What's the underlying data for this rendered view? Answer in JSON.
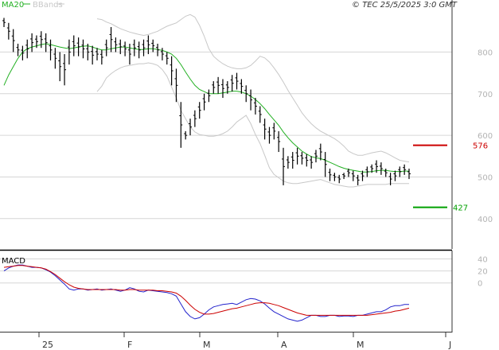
{
  "copyright": "© TEC 25/5/2025 3:0 GMT",
  "legend": {
    "ma_label": "MA20",
    "bb_label": "BBands"
  },
  "macd_label": "MACD",
  "colors": {
    "price": "#000000",
    "ma": "#22b022",
    "bb": "#c8c8c8",
    "grid": "#d6d6d6",
    "resistance": "#cc0000",
    "support": "#00a000",
    "macd": "#2222cc",
    "signal": "#cc0000"
  },
  "chart_data": {
    "type": "line",
    "price_panel": {
      "y_ticks": [
        400,
        500,
        600,
        700,
        800
      ],
      "ylim": [
        327,
        925
      ],
      "x_ticks": [
        "25",
        "F",
        "M",
        "A",
        "M",
        "J"
      ],
      "resistance": {
        "value": 576,
        "label": "576"
      },
      "support": {
        "value": 427,
        "label": "427"
      },
      "bars": [
        [
          882,
          860
        ],
        [
          870,
          830
        ],
        [
          855,
          800
        ],
        [
          820,
          790
        ],
        [
          815,
          780
        ],
        [
          830,
          785
        ],
        [
          845,
          800
        ],
        [
          840,
          810
        ],
        [
          850,
          810
        ],
        [
          845,
          800
        ],
        [
          830,
          780
        ],
        [
          810,
          760
        ],
        [
          800,
          730
        ],
        [
          795,
          720
        ],
        [
          830,
          770
        ],
        [
          840,
          790
        ],
        [
          835,
          790
        ],
        [
          830,
          785
        ],
        [
          820,
          780
        ],
        [
          815,
          770
        ],
        [
          810,
          780
        ],
        [
          805,
          770
        ],
        [
          830,
          790
        ],
        [
          860,
          800
        ],
        [
          835,
          800
        ],
        [
          830,
          795
        ],
        [
          825,
          790
        ],
        [
          820,
          770
        ],
        [
          830,
          790
        ],
        [
          825,
          785
        ],
        [
          830,
          790
        ],
        [
          840,
          795
        ],
        [
          830,
          800
        ],
        [
          820,
          790
        ],
        [
          810,
          780
        ],
        [
          800,
          770
        ],
        [
          790,
          720
        ],
        [
          760,
          680
        ],
        [
          680,
          570
        ],
        [
          610,
          590
        ],
        [
          640,
          600
        ],
        [
          660,
          620
        ],
        [
          680,
          640
        ],
        [
          700,
          660
        ],
        [
          710,
          680
        ],
        [
          730,
          700
        ],
        [
          740,
          700
        ],
        [
          735,
          690
        ],
        [
          730,
          700
        ],
        [
          745,
          705
        ],
        [
          750,
          710
        ],
        [
          735,
          700
        ],
        [
          720,
          680
        ],
        [
          710,
          660
        ],
        [
          690,
          650
        ],
        [
          670,
          630
        ],
        [
          640,
          590
        ],
        [
          620,
          580
        ],
        [
          630,
          590
        ],
        [
          610,
          560
        ],
        [
          570,
          480
        ],
        [
          550,
          520
        ],
        [
          560,
          520
        ],
        [
          570,
          530
        ],
        [
          560,
          530
        ],
        [
          555,
          525
        ],
        [
          550,
          520
        ],
        [
          565,
          535
        ],
        [
          580,
          540
        ],
        [
          560,
          500
        ],
        [
          520,
          490
        ],
        [
          510,
          490
        ],
        [
          505,
          485
        ],
        [
          510,
          495
        ],
        [
          520,
          500
        ],
        [
          515,
          490
        ],
        [
          505,
          480
        ],
        [
          515,
          490
        ],
        [
          525,
          500
        ],
        [
          530,
          510
        ],
        [
          540,
          510
        ],
        [
          535,
          505
        ],
        [
          520,
          500
        ],
        [
          510,
          480
        ],
        [
          515,
          490
        ],
        [
          525,
          500
        ],
        [
          530,
          505
        ],
        [
          520,
          495
        ]
      ],
      "ma20": [
        720,
        745,
        765,
        785,
        800,
        808,
        812,
        815,
        818,
        820,
        818,
        815,
        812,
        810,
        808,
        810,
        812,
        814,
        815,
        812,
        808,
        805,
        805,
        808,
        810,
        812,
        812,
        810,
        808,
        806,
        806,
        808,
        808,
        806,
        804,
        800,
        795,
        785,
        770,
        752,
        735,
        720,
        710,
        705,
        700,
        700,
        700,
        702,
        704,
        706,
        706,
        704,
        700,
        694,
        686,
        676,
        664,
        650,
        637,
        624,
        608,
        594,
        582,
        572,
        562,
        555,
        549,
        546,
        544,
        540,
        535,
        530,
        525,
        521,
        518,
        516,
        514,
        512,
        512,
        513,
        515,
        516,
        516,
        514,
        513,
        513,
        514,
        514
      ],
      "bb_upper": [
        null,
        null,
        null,
        null,
        null,
        null,
        null,
        null,
        null,
        null,
        null,
        null,
        null,
        null,
        null,
        null,
        null,
        null,
        null,
        null,
        880,
        878,
        872,
        868,
        862,
        856,
        852,
        848,
        845,
        842,
        840,
        842,
        846,
        850,
        856,
        862,
        866,
        870,
        878,
        886,
        890,
        884,
        864,
        838,
        808,
        790,
        780,
        772,
        766,
        762,
        760,
        760,
        762,
        768,
        778,
        790,
        786,
        776,
        762,
        746,
        728,
        708,
        690,
        672,
        654,
        640,
        628,
        618,
        610,
        604,
        598,
        592,
        584,
        574,
        562,
        556,
        552,
        552,
        555,
        558,
        560,
        562,
        558,
        552,
        546,
        540,
        538,
        536
      ],
      "bb_lower": [
        null,
        null,
        null,
        null,
        null,
        null,
        null,
        null,
        null,
        null,
        null,
        null,
        null,
        null,
        null,
        null,
        null,
        null,
        null,
        null,
        705,
        718,
        738,
        748,
        756,
        762,
        766,
        768,
        770,
        772,
        772,
        774,
        772,
        768,
        758,
        742,
        716,
        690,
        660,
        640,
        620,
        608,
        602,
        600,
        598,
        598,
        600,
        604,
        610,
        620,
        632,
        640,
        648,
        628,
        602,
        580,
        552,
        522,
        506,
        498,
        490,
        486,
        484,
        484,
        486,
        488,
        490,
        492,
        494,
        490,
        486,
        482,
        480,
        478,
        476,
        476,
        478,
        480,
        482,
        482,
        482,
        482,
        482,
        484,
        484,
        484,
        484,
        484
      ]
    },
    "macd_panel": {
      "y_ticks": [
        0,
        20,
        40
      ],
      "ylim": [
        -80,
        50
      ],
      "macd": [
        20,
        25,
        28,
        30,
        30,
        28,
        26,
        26,
        25,
        22,
        18,
        12,
        5,
        -2,
        -10,
        -12,
        -10,
        -10,
        -12,
        -11,
        -10,
        -12,
        -11,
        -10,
        -12,
        -14,
        -12,
        -8,
        -10,
        -14,
        -15,
        -12,
        -13,
        -14,
        -15,
        -16,
        -18,
        -22,
        -35,
        -48,
        -56,
        -60,
        -58,
        -52,
        -45,
        -40,
        -38,
        -36,
        -35,
        -34,
        -36,
        -32,
        -28,
        -26,
        -27,
        -30,
        -35,
        -42,
        -48,
        -52,
        -56,
        -60,
        -62,
        -64,
        -62,
        -58,
        -54,
        -54,
        -56,
        -56,
        -54,
        -54,
        -56,
        -55,
        -55,
        -56,
        -54,
        -54,
        -52,
        -50,
        -48,
        -48,
        -45,
        -40,
        -38,
        -38,
        -36,
        -36
      ],
      "signal": [
        26,
        27,
        28,
        29,
        29,
        28,
        27,
        26,
        25,
        23,
        19,
        14,
        8,
        2,
        -3,
        -7,
        -9,
        -10,
        -11,
        -11,
        -11,
        -11,
        -11,
        -11,
        -11,
        -12,
        -12,
        -11,
        -11,
        -12,
        -12,
        -12,
        -12,
        -13,
        -13,
        -14,
        -15,
        -17,
        -22,
        -29,
        -37,
        -44,
        -49,
        -52,
        -52,
        -51,
        -49,
        -47,
        -45,
        -43,
        -42,
        -40,
        -38,
        -36,
        -34,
        -33,
        -33,
        -34,
        -36,
        -38,
        -41,
        -44,
        -47,
        -50,
        -52,
        -54,
        -54,
        -54,
        -54,
        -54,
        -54,
        -54,
        -54,
        -54,
        -54,
        -54,
        -54,
        -54,
        -54,
        -53,
        -52,
        -51,
        -50,
        -49,
        -47,
        -46,
        -44,
        -42
      ]
    }
  }
}
